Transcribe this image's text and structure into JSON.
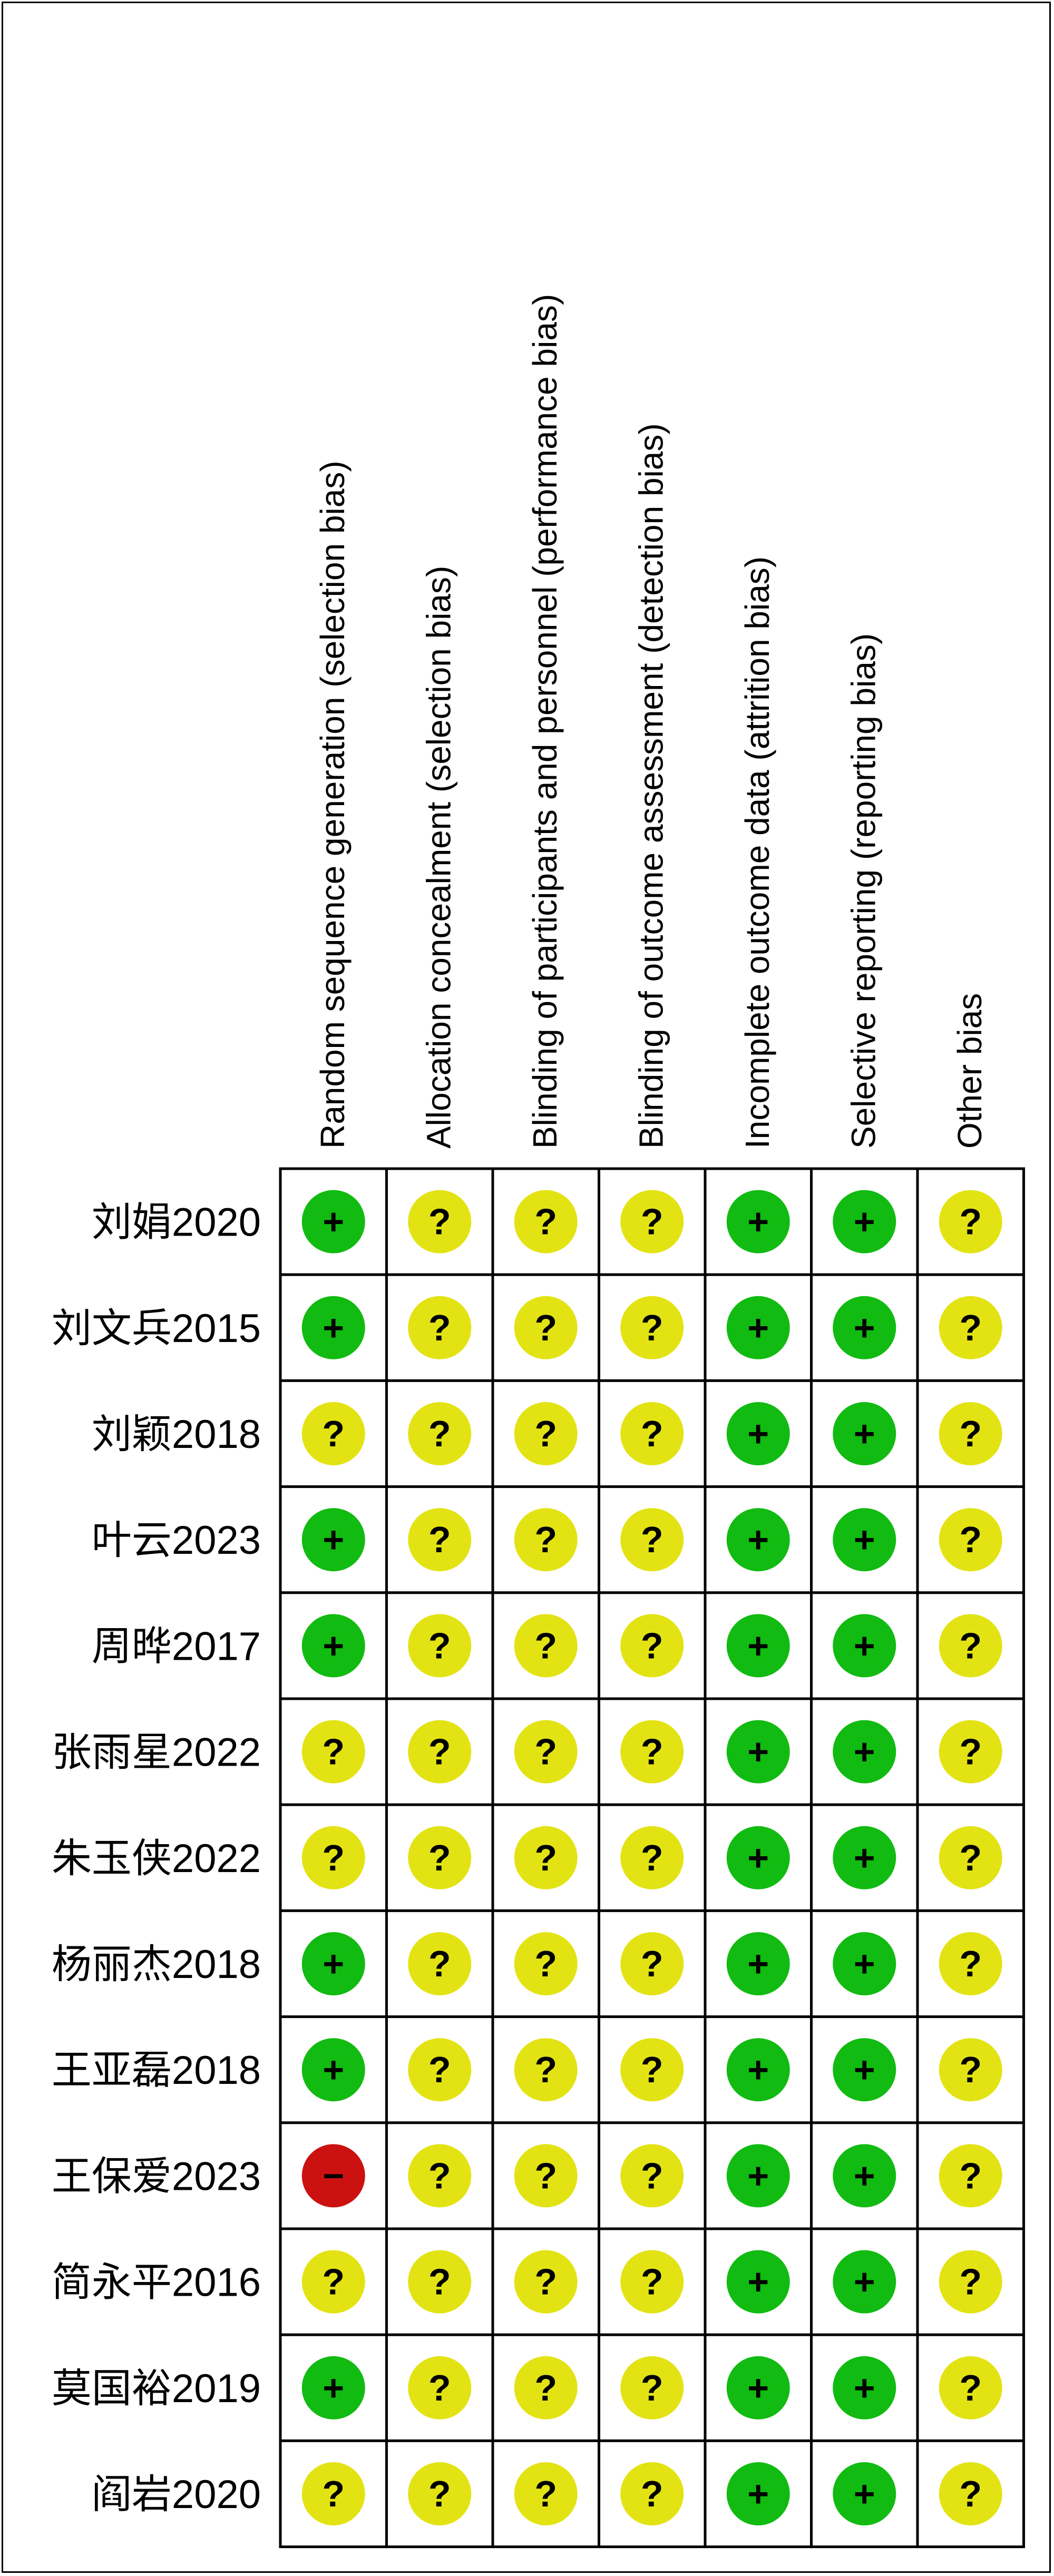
{
  "chart_data": {
    "type": "table",
    "colors": {
      "low": "#11bb11",
      "unclear": "#e3e314",
      "high": "#cc1111",
      "grid": "#000000"
    },
    "symbols": {
      "low": "+",
      "unclear": "?",
      "high": "−"
    },
    "domains": [
      "Random sequence generation (selection bias)",
      "Allocation concealment (selection bias)",
      "Blinding of participants and personnel (performance bias)",
      "Blinding of outcome assessment (detection bias)",
      "Incomplete outcome data (attrition bias)",
      "Selective reporting (reporting bias)",
      "Other bias"
    ],
    "studies": [
      {
        "name": "刘娟2020",
        "ratings": [
          "low",
          "unclear",
          "unclear",
          "unclear",
          "low",
          "low",
          "unclear"
        ]
      },
      {
        "name": "刘文兵2015",
        "ratings": [
          "low",
          "unclear",
          "unclear",
          "unclear",
          "low",
          "low",
          "unclear"
        ]
      },
      {
        "name": "刘颖2018",
        "ratings": [
          "unclear",
          "unclear",
          "unclear",
          "unclear",
          "low",
          "low",
          "unclear"
        ]
      },
      {
        "name": "叶云2023",
        "ratings": [
          "low",
          "unclear",
          "unclear",
          "unclear",
          "low",
          "low",
          "unclear"
        ]
      },
      {
        "name": "周晔2017",
        "ratings": [
          "low",
          "unclear",
          "unclear",
          "unclear",
          "low",
          "low",
          "unclear"
        ]
      },
      {
        "name": "张雨星2022",
        "ratings": [
          "unclear",
          "unclear",
          "unclear",
          "unclear",
          "low",
          "low",
          "unclear"
        ]
      },
      {
        "name": "朱玉侠2022",
        "ratings": [
          "unclear",
          "unclear",
          "unclear",
          "unclear",
          "low",
          "low",
          "unclear"
        ]
      },
      {
        "name": "杨丽杰2018",
        "ratings": [
          "low",
          "unclear",
          "unclear",
          "unclear",
          "low",
          "low",
          "unclear"
        ]
      },
      {
        "name": "王亚磊2018",
        "ratings": [
          "low",
          "unclear",
          "unclear",
          "unclear",
          "low",
          "low",
          "unclear"
        ]
      },
      {
        "name": "王保爱2023",
        "ratings": [
          "high",
          "unclear",
          "unclear",
          "unclear",
          "low",
          "low",
          "unclear"
        ]
      },
      {
        "name": "简永平2016",
        "ratings": [
          "unclear",
          "unclear",
          "unclear",
          "unclear",
          "low",
          "low",
          "unclear"
        ]
      },
      {
        "name": "莫国裕2019",
        "ratings": [
          "low",
          "unclear",
          "unclear",
          "unclear",
          "low",
          "low",
          "unclear"
        ]
      },
      {
        "name": "阎岩2020",
        "ratings": [
          "unclear",
          "unclear",
          "unclear",
          "unclear",
          "low",
          "low",
          "unclear"
        ]
      }
    ]
  }
}
